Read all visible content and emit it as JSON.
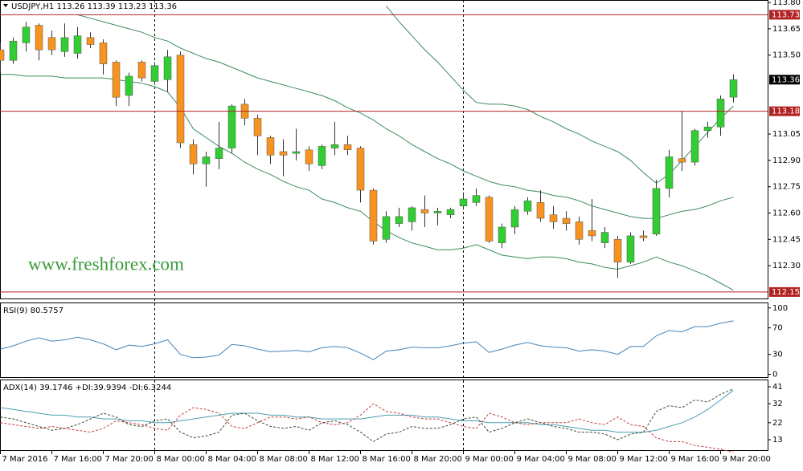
{
  "chart_data": [
    {
      "type": "candlestick",
      "symbol": "USDJPY,H1",
      "watermark": "www.freshforex.com",
      "categories": [
        "7 Mar 2016",
        null,
        null,
        null,
        "7 Mar 16:00",
        null,
        null,
        null,
        "7 Mar 20:00",
        null,
        null,
        null,
        "8 Mar 00:00",
        null,
        null,
        null,
        "8 Mar 04:00",
        null,
        null,
        null,
        "8 Mar 08:00",
        null,
        null,
        null,
        "8 Mar 12:00",
        null,
        null,
        null,
        "8 Mar 16:00",
        null,
        null,
        null,
        "8 Mar 20:00",
        null,
        null,
        null,
        "9 Mar 00:00",
        null,
        null,
        null,
        "9 Mar 04:00",
        null,
        null,
        null,
        "9 Mar 08:00",
        null,
        null,
        null,
        "9 Mar 12:00",
        null,
        null,
        null,
        "9 Mar 16:00",
        null,
        null,
        null,
        "9 Mar 20:00",
        null
      ],
      "open": [
        113.53,
        113.47,
        113.57,
        113.67,
        113.6,
        113.52,
        113.51,
        113.6,
        113.57,
        113.46,
        113.27,
        113.46,
        113.35,
        113.36,
        113.5,
        112.99,
        112.88,
        112.91,
        112.97,
        113.22,
        113.14,
        113.03,
        112.95,
        112.94,
        112.96,
        112.87,
        112.97,
        112.99,
        112.97,
        112.73,
        112.45,
        112.54,
        112.55,
        112.62,
        112.6,
        112.59,
        112.64,
        112.66,
        112.69,
        112.43,
        112.52,
        112.61,
        112.66,
        112.59,
        112.57,
        112.55,
        112.5,
        112.43,
        112.45,
        112.32,
        112.47,
        112.48,
        112.74,
        112.91,
        112.89,
        113.07,
        113.09,
        113.26
      ],
      "high": [
        113.57,
        113.6,
        113.69,
        113.68,
        113.64,
        113.68,
        113.66,
        113.63,
        113.59,
        113.47,
        113.4,
        113.47,
        113.46,
        113.53,
        113.52,
        113.02,
        112.95,
        113.12,
        113.22,
        113.25,
        113.16,
        113.04,
        113.02,
        113.08,
        112.98,
        112.99,
        113.12,
        113.04,
        112.98,
        112.74,
        112.61,
        112.63,
        112.64,
        112.7,
        112.63,
        112.63,
        112.71,
        112.74,
        112.7,
        112.54,
        112.64,
        112.69,
        112.73,
        112.64,
        112.61,
        112.58,
        112.68,
        112.52,
        112.47,
        112.49,
        112.5,
        112.79,
        112.96,
        113.18,
        113.08,
        113.12,
        113.27,
        113.39
      ],
      "low": [
        113.4,
        113.45,
        113.52,
        113.47,
        113.5,
        113.49,
        113.48,
        113.54,
        113.39,
        113.21,
        113.21,
        113.35,
        113.33,
        113.29,
        112.97,
        112.82,
        112.75,
        112.85,
        112.94,
        113.1,
        112.93,
        112.88,
        112.81,
        112.9,
        112.84,
        112.85,
        112.93,
        112.93,
        112.66,
        112.42,
        112.43,
        112.52,
        112.5,
        112.52,
        112.53,
        112.57,
        112.62,
        112.64,
        112.43,
        112.4,
        112.48,
        112.59,
        112.55,
        112.51,
        112.5,
        112.42,
        112.44,
        112.4,
        112.23,
        112.31,
        112.44,
        112.47,
        112.69,
        112.84,
        112.87,
        113.03,
        113.04,
        113.23
      ],
      "close": [
        113.47,
        113.58,
        113.66,
        113.53,
        113.53,
        113.6,
        113.61,
        113.56,
        113.45,
        113.26,
        113.38,
        113.37,
        113.44,
        113.49,
        113.0,
        112.88,
        112.92,
        112.97,
        113.21,
        113.14,
        113.04,
        112.93,
        112.93,
        112.95,
        112.88,
        112.98,
        112.99,
        112.96,
        112.73,
        112.44,
        112.58,
        112.58,
        112.63,
        112.6,
        112.61,
        112.62,
        112.68,
        112.7,
        112.44,
        112.52,
        112.62,
        112.67,
        112.57,
        112.55,
        112.54,
        112.45,
        112.47,
        112.49,
        112.32,
        112.47,
        112.46,
        112.74,
        112.92,
        112.89,
        113.07,
        113.09,
        113.25,
        113.36
      ],
      "up_color": "#32cd32",
      "down_color": "#f7931e",
      "series": [
        {
          "color": "#3c8c5a",
          "values": [
            null,
            null,
            null,
            null,
            null,
            null,
            null,
            null,
            null,
            null,
            null,
            null,
            null,
            null,
            null,
            null,
            null,
            null,
            null,
            null,
            null,
            null,
            null,
            null,
            null,
            null,
            null,
            null,
            null,
            null,
            113.78,
            113.69,
            113.61,
            113.53,
            113.46,
            113.38,
            113.3,
            113.23,
            113.22,
            113.22,
            113.21,
            113.19,
            113.15,
            113.12,
            113.08,
            113.05,
            113.01,
            112.98,
            112.95,
            112.9,
            112.83,
            112.77,
            112.82,
            112.9,
            112.98,
            113.06,
            113.14,
            113.21
          ]
        },
        {
          "color": "#3c8c5a",
          "values": [
            null,
            null,
            null,
            null,
            null,
            null,
            113.73,
            113.71,
            113.69,
            113.67,
            113.65,
            113.63,
            113.6,
            113.58,
            113.54,
            113.51,
            113.48,
            113.46,
            113.43,
            113.4,
            113.37,
            113.35,
            113.33,
            113.31,
            113.29,
            113.27,
            113.24,
            113.2,
            113.17,
            113.13,
            113.08,
            113.04,
            112.99,
            112.95,
            112.91,
            112.88,
            112.84,
            112.81,
            112.78,
            112.76,
            112.75,
            112.73,
            112.72,
            112.7,
            112.69,
            112.67,
            112.64,
            112.62,
            112.6,
            112.58,
            112.57,
            112.57,
            112.59,
            112.61,
            112.62,
            112.64,
            112.67,
            112.69
          ]
        },
        {
          "color": "#3c8c5a",
          "values": [
            113.39,
            113.39,
            113.38,
            113.38,
            113.38,
            113.37,
            113.37,
            113.37,
            113.37,
            113.36,
            113.35,
            113.34,
            113.32,
            113.29,
            113.2,
            113.08,
            113.03,
            112.98,
            112.94,
            112.89,
            112.85,
            112.82,
            112.78,
            112.75,
            112.73,
            112.68,
            112.66,
            112.63,
            112.61,
            112.55,
            112.5,
            112.46,
            112.43,
            112.41,
            112.39,
            112.39,
            112.4,
            112.42,
            112.39,
            112.36,
            112.35,
            112.34,
            112.35,
            112.35,
            112.34,
            112.32,
            112.31,
            112.29,
            112.28,
            112.3,
            112.32,
            112.35,
            112.32,
            112.3,
            112.27,
            112.24,
            112.2,
            112.16
          ]
        }
      ],
      "levels": [
        113.73,
        113.18,
        112.15
      ],
      "level_color": "#b22222",
      "ylim": [
        112.113,
        113.814
      ],
      "yticks": [
        {
          "value": 113.8,
          "label": "113.80"
        },
        113.65,
        {
          "value": 113.5,
          "label": "113.50"
        },
        113.05,
        {
          "value": 112.9,
          "label": "112.90"
        },
        112.75,
        {
          "value": 112.6,
          "label": "112.60"
        },
        112.45,
        {
          "value": 112.3,
          "label": "112.30"
        }
      ]
    },
    {
      "type": "line",
      "title": "RSI(9)",
      "series": [
        {
          "color": "#4682b4",
          "values": [
            38,
            43,
            50,
            55,
            50,
            52,
            56,
            52,
            46,
            37,
            44,
            42,
            46,
            52,
            30,
            25,
            26,
            29,
            45,
            43,
            38,
            34,
            35,
            36,
            34,
            40,
            42,
            40,
            32,
            22,
            35,
            37,
            41,
            40,
            40,
            43,
            47,
            49,
            33,
            38,
            44,
            48,
            43,
            41,
            40,
            35,
            37,
            35,
            30,
            42,
            42,
            58,
            66,
            64,
            72,
            72,
            77,
            80.5757
          ]
        }
      ],
      "ylim": [
        -5.4,
        107
      ],
      "yticks": [
        100,
        70,
        30,
        0
      ]
    },
    {
      "type": "line",
      "title": "ADX(14)",
      "series": [
        {
          "name": "ADX(14)",
          "color": "#4a9fb0",
          "dash": false,
          "values": [
            30,
            29,
            28,
            27,
            26,
            26,
            25,
            25,
            24,
            24,
            23,
            23,
            22,
            22,
            23,
            24,
            25,
            26,
            27,
            27,
            27,
            26,
            26,
            25,
            25,
            24,
            24,
            24,
            24,
            25,
            26,
            26,
            26,
            25,
            25,
            24,
            23,
            23,
            22,
            22,
            22,
            22,
            21,
            21,
            20,
            19,
            18,
            18,
            17,
            17,
            17,
            18,
            20,
            22,
            25,
            29,
            34,
            39.1746
          ]
        },
        {
          "name": "+DI:",
          "color": "#2f4f2f",
          "dash": true,
          "values": [
            25,
            24,
            22,
            20,
            18,
            19,
            21,
            24,
            27,
            25,
            21,
            20,
            23,
            24,
            17,
            14,
            15,
            17,
            26,
            27,
            23,
            20,
            19,
            20,
            18,
            22,
            23,
            21,
            17,
            12,
            16,
            17,
            20,
            19,
            19,
            21,
            24,
            25,
            17,
            19,
            22,
            24,
            22,
            20,
            19,
            17,
            17,
            16,
            13,
            16,
            17,
            28,
            31,
            30,
            34,
            33,
            37,
            39.9394
          ]
        },
        {
          "name": "-DI:",
          "color": "#c04040",
          "dash": true,
          "values": [
            22,
            21,
            20,
            19,
            20,
            19,
            18,
            17,
            19,
            23,
            22,
            21,
            19,
            18,
            26,
            30,
            29,
            27,
            20,
            19,
            22,
            25,
            25,
            24,
            25,
            22,
            21,
            22,
            26,
            32,
            28,
            27,
            25,
            24,
            24,
            22,
            20,
            19,
            27,
            25,
            22,
            21,
            22,
            22,
            22,
            24,
            22,
            21,
            25,
            21,
            20,
            14,
            12,
            12,
            10,
            9,
            8,
            6.3244
          ]
        }
      ],
      "ylim": [
        7.5,
        44.4
      ],
      "yticks": [
        41,
        32,
        22,
        13
      ]
    }
  ]
}
